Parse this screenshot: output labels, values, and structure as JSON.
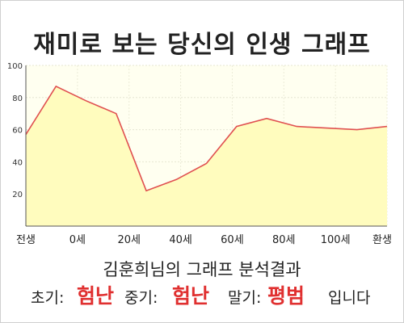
{
  "title": "재미로 보는 당신의 인생 그래프",
  "subtitle": "김훈희님의 그래프 분석결과",
  "result": {
    "early_label": "초기:",
    "early_value": "험난",
    "middle_label": "중기:",
    "middle_value": "험난",
    "late_label": "말기:",
    "late_value": "평범",
    "ending": "입니다"
  },
  "colors": {
    "plot_background": "#fffff0",
    "area_fill": "#fffcbe",
    "line": "#e05050",
    "result_value": "#e03030"
  },
  "chart_data": {
    "type": "area",
    "title": "재미로 보는 당신의 인생 그래프",
    "x_tick_labels": [
      "전생",
      "0세",
      "20세",
      "40세",
      "60세",
      "80세",
      "100세",
      "환생"
    ],
    "y_tick_labels": [
      "20",
      "40",
      "60",
      "80",
      "100"
    ],
    "ylim": [
      0,
      100
    ],
    "grid": true,
    "series": [
      {
        "x": [
          "전생",
          "0세",
          "10세",
          "20세",
          "30세",
          "40세",
          "50세",
          "60세",
          "70세",
          "80세",
          "90세",
          "100세",
          "환생"
        ],
        "values": [
          57,
          87,
          78,
          70,
          22,
          29,
          39,
          62,
          67,
          62,
          61,
          60,
          62
        ]
      }
    ]
  }
}
